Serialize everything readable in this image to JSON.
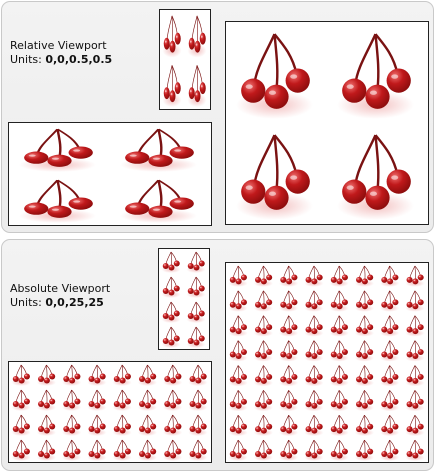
{
  "panels": [
    {
      "caption_line1": "Relative Viewport",
      "caption_units_label": "Units:",
      "caption_units_value": "0,0,0.5,0.5",
      "tiling": "relative"
    },
    {
      "caption_line1": "Absolute Viewport",
      "caption_units_label": "Units:",
      "caption_units_value": "0,0,25,25",
      "tiling": "absolute"
    }
  ],
  "colors": {
    "cherry_dark": "#8a0c0c",
    "cherry_mid": "#c0191b",
    "cherry_light": "#f07070",
    "stem": "#7a1212",
    "glow": "#e88a8a"
  },
  "icon": "cherry-pair-icon"
}
